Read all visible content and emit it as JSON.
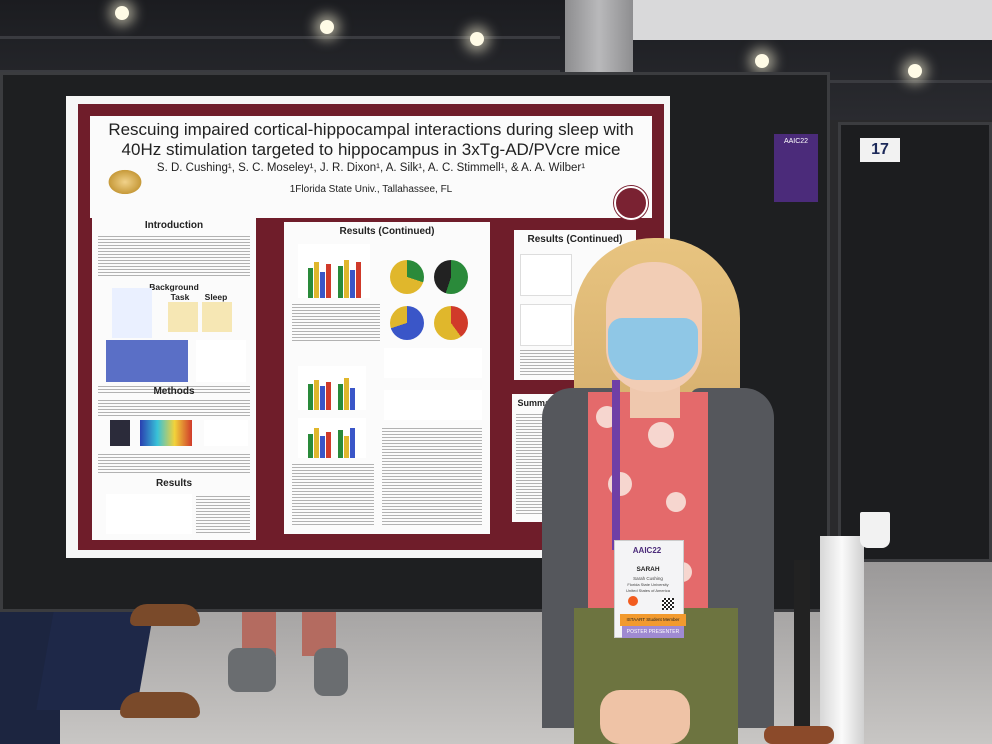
{
  "poster": {
    "title": "Rescuing impaired cortical-hippocampal interactions during sleep with 40Hz stimulation targeted to hippocampus in 3xTg-AD/PVcre mice",
    "authors": "S. D. Cushing¹, S. C. Moseley¹, J. R. Dixon¹, A. Silk¹, A. C. Stimmell¹, & A. A. Wilber¹",
    "affiliation": "1Florida State Univ., Tallahassee, FL",
    "sections": {
      "introduction": "Introduction",
      "background": "Background",
      "task": "Task",
      "sleep": "Sleep",
      "methods": "Methods",
      "results": "Results",
      "results_continued_1": "Results (Continued)",
      "results_continued_2": "Results (Continued)",
      "summary": "Summary"
    }
  },
  "booth": {
    "board_number": "17",
    "sticker_text": "AAIC22"
  },
  "badge": {
    "conference": "AAIC22",
    "name": "SARAH",
    "line2": "Sarah Cushing",
    "line3": "Florida State University",
    "line4": "United States of America",
    "strip": "ISTAART Student Member",
    "ribbon": "POSTER PRESENTER"
  },
  "colors": {
    "poster_frame": "#6f1d2a",
    "lanyard": "#6f3fa6",
    "mask": "#8fc7e6",
    "shirt": "#e46a6b"
  }
}
